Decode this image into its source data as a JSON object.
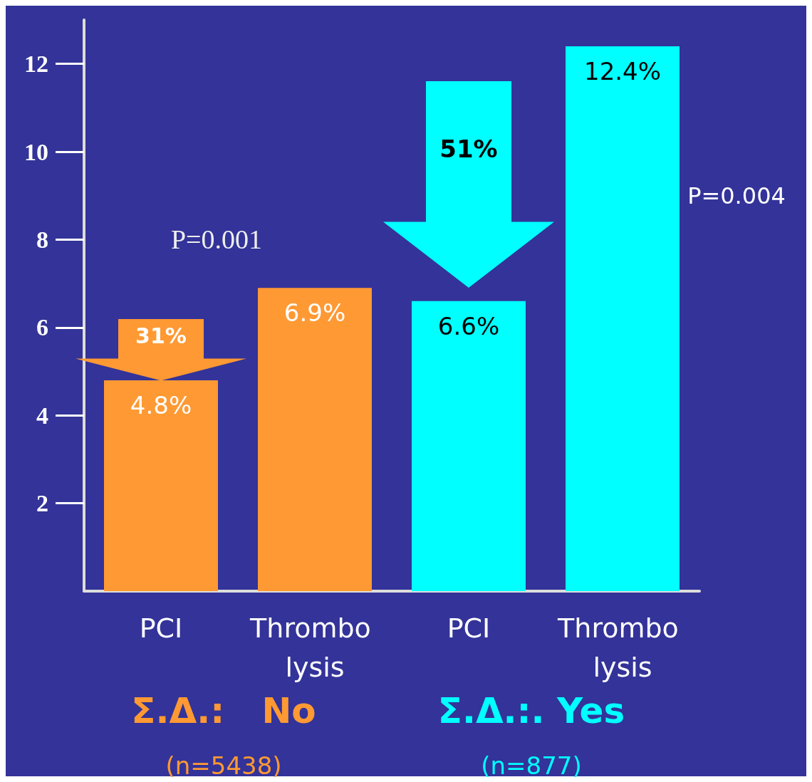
{
  "chart_data": {
    "type": "bar",
    "categories": [
      "PCI",
      "Thrombo lysis",
      "PCI",
      "Thrombo lysis"
    ],
    "values": [
      4.8,
      6.9,
      6.6,
      12.4
    ],
    "colors": [
      "#ff9933",
      "#ff9933",
      "#00ffff",
      "#00ffff"
    ],
    "value_labels": [
      "4.8%",
      "6.9%",
      "6.6%",
      "12.4%"
    ],
    "ylim": [
      0,
      13
    ],
    "yticks": [
      2,
      4,
      6,
      8,
      10,
      12
    ],
    "grid": false,
    "annotations": [
      "P=0.001",
      "P=0.004",
      "Σ.Δ.:   No",
      "Σ.Δ.:. Yes",
      "(n=5438)",
      "(n=877)",
      "31%",
      "51%"
    ]
  }
}
